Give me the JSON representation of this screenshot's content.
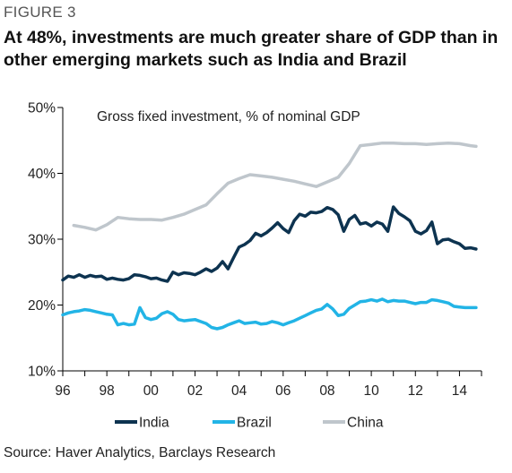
{
  "figure_label": "FIGURE 3",
  "title": "At 48%, investments are much greater share of GDP than in other emerging markets such as India and Brazil",
  "source": "Source: Haver Analytics, Barclays Research",
  "colors": {
    "India": "#0d3350",
    "Brazil": "#22b4e6",
    "China": "#bfc6cc"
  },
  "chart_data": {
    "type": "line",
    "title": "Gross fixed investment, % of nominal GDP",
    "xlabel": "",
    "ylabel": "",
    "xlim": [
      1996,
      2015
    ],
    "ylim": [
      10,
      50
    ],
    "y_ticks": [
      10,
      20,
      30,
      40,
      50
    ],
    "y_tick_labels": [
      "10%",
      "20%",
      "30%",
      "40%",
      "50%"
    ],
    "x_ticks": [
      1996,
      1998,
      2000,
      2002,
      2004,
      2006,
      2008,
      2010,
      2012,
      2014
    ],
    "x_tick_labels": [
      "96",
      "98",
      "00",
      "02",
      "04",
      "06",
      "08",
      "10",
      "12",
      "14"
    ],
    "grid": false,
    "legend_position": "bottom",
    "series": [
      {
        "name": "India",
        "x": [
          1996.0,
          1996.25,
          1996.5,
          1996.75,
          1997.0,
          1997.25,
          1997.5,
          1997.75,
          1998.0,
          1998.25,
          1998.5,
          1998.75,
          1999.0,
          1999.25,
          1999.5,
          1999.75,
          2000.0,
          2000.25,
          2000.5,
          2000.75,
          2001.0,
          2001.25,
          2001.5,
          2001.75,
          2002.0,
          2002.25,
          2002.5,
          2002.75,
          2003.0,
          2003.25,
          2003.5,
          2003.75,
          2004.0,
          2004.25,
          2004.5,
          2004.75,
          2005.0,
          2005.25,
          2005.5,
          2005.75,
          2006.0,
          2006.25,
          2006.5,
          2006.75,
          2007.0,
          2007.25,
          2007.5,
          2007.75,
          2008.0,
          2008.25,
          2008.5,
          2008.75,
          2009.0,
          2009.25,
          2009.5,
          2009.75,
          2010.0,
          2010.25,
          2010.5,
          2010.75,
          2011.0,
          2011.25,
          2011.5,
          2011.75,
          2012.0,
          2012.25,
          2012.5,
          2012.75,
          2013.0,
          2013.25,
          2013.5,
          2013.75,
          2014.0,
          2014.25,
          2014.5,
          2014.75
        ],
        "values": [
          23.8,
          24.4,
          24.2,
          24.6,
          24.2,
          24.5,
          24.3,
          24.4,
          23.9,
          24.1,
          23.9,
          23.8,
          24.0,
          24.6,
          24.5,
          24.3,
          24.0,
          24.1,
          23.8,
          23.6,
          25.0,
          24.6,
          24.9,
          24.8,
          24.6,
          25.0,
          25.5,
          25.1,
          25.6,
          26.6,
          25.5,
          27.2,
          28.8,
          29.2,
          29.8,
          30.9,
          30.5,
          31.0,
          31.7,
          32.5,
          31.6,
          31.0,
          32.8,
          33.8,
          33.5,
          34.1,
          34.0,
          34.2,
          34.8,
          34.5,
          33.7,
          31.2,
          33.0,
          33.6,
          32.3,
          32.5,
          32.0,
          32.6,
          32.3,
          31.2,
          34.9,
          33.9,
          33.4,
          32.8,
          31.2,
          30.8,
          31.3,
          32.6,
          29.3,
          29.9,
          30.0,
          29.6,
          29.3,
          28.6,
          28.7,
          28.5
        ]
      },
      {
        "name": "Brazil",
        "x": [
          1996.0,
          1996.25,
          1996.5,
          1996.75,
          1997.0,
          1997.25,
          1997.5,
          1997.75,
          1998.0,
          1998.25,
          1998.5,
          1998.75,
          1999.0,
          1999.25,
          1999.5,
          1999.75,
          2000.0,
          2000.25,
          2000.5,
          2000.75,
          2001.0,
          2001.25,
          2001.5,
          2001.75,
          2002.0,
          2002.25,
          2002.5,
          2002.75,
          2003.0,
          2003.25,
          2003.5,
          2003.75,
          2004.0,
          2004.25,
          2004.5,
          2004.75,
          2005.0,
          2005.25,
          2005.5,
          2005.75,
          2006.0,
          2006.25,
          2006.5,
          2006.75,
          2007.0,
          2007.25,
          2007.5,
          2007.75,
          2008.0,
          2008.25,
          2008.5,
          2008.75,
          2009.0,
          2009.25,
          2009.5,
          2009.75,
          2010.0,
          2010.25,
          2010.5,
          2010.75,
          2011.0,
          2011.25,
          2011.5,
          2011.75,
          2012.0,
          2012.25,
          2012.5,
          2012.75,
          2013.0,
          2013.25,
          2013.5,
          2013.75,
          2014.0,
          2014.25,
          2014.5,
          2014.75
        ],
        "values": [
          18.5,
          18.8,
          19.0,
          19.1,
          19.3,
          19.2,
          19.0,
          18.8,
          18.6,
          18.5,
          17.0,
          17.2,
          17.0,
          17.1,
          19.6,
          18.1,
          17.8,
          18.0,
          18.7,
          19.0,
          18.6,
          17.8,
          17.6,
          17.7,
          17.8,
          17.5,
          17.2,
          16.6,
          16.4,
          16.6,
          17.0,
          17.3,
          17.6,
          17.2,
          17.3,
          17.4,
          17.1,
          17.2,
          17.5,
          17.3,
          17.0,
          17.3,
          17.6,
          18.0,
          18.4,
          18.8,
          19.2,
          19.4,
          20.1,
          19.4,
          18.4,
          18.6,
          19.5,
          20.0,
          20.5,
          20.6,
          20.8,
          20.6,
          20.9,
          20.5,
          20.7,
          20.6,
          20.6,
          20.4,
          20.2,
          20.4,
          20.4,
          20.8,
          20.7,
          20.5,
          20.3,
          19.8,
          19.7,
          19.6,
          19.6,
          19.6
        ]
      },
      {
        "name": "China",
        "x": [
          1996.5,
          1997.0,
          1997.5,
          1998.0,
          1998.5,
          1999.0,
          1999.5,
          2000.0,
          2000.5,
          2001.0,
          2001.5,
          2002.0,
          2002.5,
          2003.0,
          2003.5,
          2004.0,
          2004.5,
          2005.0,
          2005.5,
          2006.0,
          2006.5,
          2007.0,
          2007.5,
          2008.0,
          2008.5,
          2009.0,
          2009.5,
          2010.0,
          2010.5,
          2011.0,
          2011.5,
          2012.0,
          2012.5,
          2013.0,
          2013.5,
          2014.0,
          2014.5,
          2014.75
        ],
        "values": [
          32.1,
          31.8,
          31.4,
          32.2,
          33.3,
          33.1,
          33.0,
          33.0,
          32.9,
          33.3,
          33.8,
          34.5,
          35.2,
          36.9,
          38.5,
          39.2,
          39.8,
          39.6,
          39.4,
          39.1,
          38.8,
          38.4,
          38.0,
          38.7,
          39.4,
          41.5,
          44.2,
          44.4,
          44.6,
          44.6,
          44.5,
          44.5,
          44.4,
          44.5,
          44.6,
          44.5,
          44.2,
          44.1
        ]
      }
    ]
  }
}
